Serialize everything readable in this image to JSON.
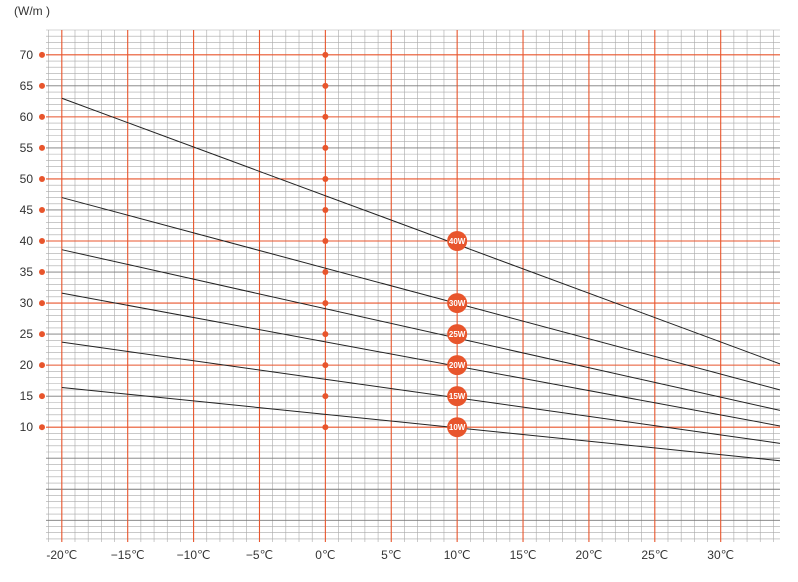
{
  "chart_data": {
    "type": "line",
    "ylabel": "(W/m )",
    "xlim": [
      -21.2,
      34.5
    ],
    "ylim": [
      -8.5,
      74
    ],
    "y_ticks": [
      {
        "value": 70,
        "label": "70"
      },
      {
        "value": 65,
        "label": "65"
      },
      {
        "value": 60,
        "label": "60"
      },
      {
        "value": 55,
        "label": "55"
      },
      {
        "value": 50,
        "label": "50"
      },
      {
        "value": 45,
        "label": "45"
      },
      {
        "value": 40,
        "label": "40"
      },
      {
        "value": 35,
        "label": "35"
      },
      {
        "value": 30,
        "label": "30"
      },
      {
        "value": 25,
        "label": "25"
      },
      {
        "value": 20,
        "label": "20"
      },
      {
        "value": 15,
        "label": "15"
      },
      {
        "value": 10,
        "label": "10"
      }
    ],
    "x_ticks": [
      {
        "value": -20,
        "label": "-20℃"
      },
      {
        "value": -15,
        "label": "−15℃"
      },
      {
        "value": -10,
        "label": "−10℃"
      },
      {
        "value": -5,
        "label": "−5℃"
      },
      {
        "value": 0,
        "label": "0℃"
      },
      {
        "value": 5,
        "label": "5℃"
      },
      {
        "value": 10,
        "label": "10℃"
      },
      {
        "value": 15,
        "label": "15℃"
      },
      {
        "value": 20,
        "label": "20℃"
      },
      {
        "value": 25,
        "label": "25℃"
      },
      {
        "value": 30,
        "label": "30℃"
      }
    ],
    "marker_column_x": 0,
    "marker_column_values": [
      70,
      65,
      60,
      55,
      50,
      45,
      40,
      35,
      30,
      25,
      20,
      15,
      10
    ],
    "series": [
      {
        "name": "40W",
        "label_x": 10,
        "label_y": 40,
        "x": [
          -20,
          34.5
        ],
        "y": [
          63,
          20.2
        ]
      },
      {
        "name": "30W",
        "label_x": 10,
        "label_y": 30,
        "x": [
          -20,
          34.5
        ],
        "y": [
          47,
          16
        ]
      },
      {
        "name": "25W",
        "label_x": 10,
        "label_y": 25,
        "x": [
          -20,
          34.5
        ],
        "y": [
          38.6,
          12.7
        ]
      },
      {
        "name": "20W",
        "label_x": 10,
        "label_y": 20,
        "x": [
          -20,
          34.5
        ],
        "y": [
          31.6,
          10.2
        ]
      },
      {
        "name": "15W",
        "label_x": 10,
        "label_y": 15,
        "x": [
          -20,
          34.5
        ],
        "y": [
          23.7,
          7.4
        ]
      },
      {
        "name": "10W",
        "label_x": 10,
        "label_y": 10,
        "x": [
          -20,
          34.5
        ],
        "y": [
          16.4,
          4.6
        ]
      }
    ],
    "minor_grid": true,
    "major_grid": true,
    "colors": {
      "minor_grid": "#a9a9a9",
      "major_grid": "#e8552c",
      "marker": "#e8552c",
      "line": "#222222",
      "badge": "#e8552c"
    }
  }
}
